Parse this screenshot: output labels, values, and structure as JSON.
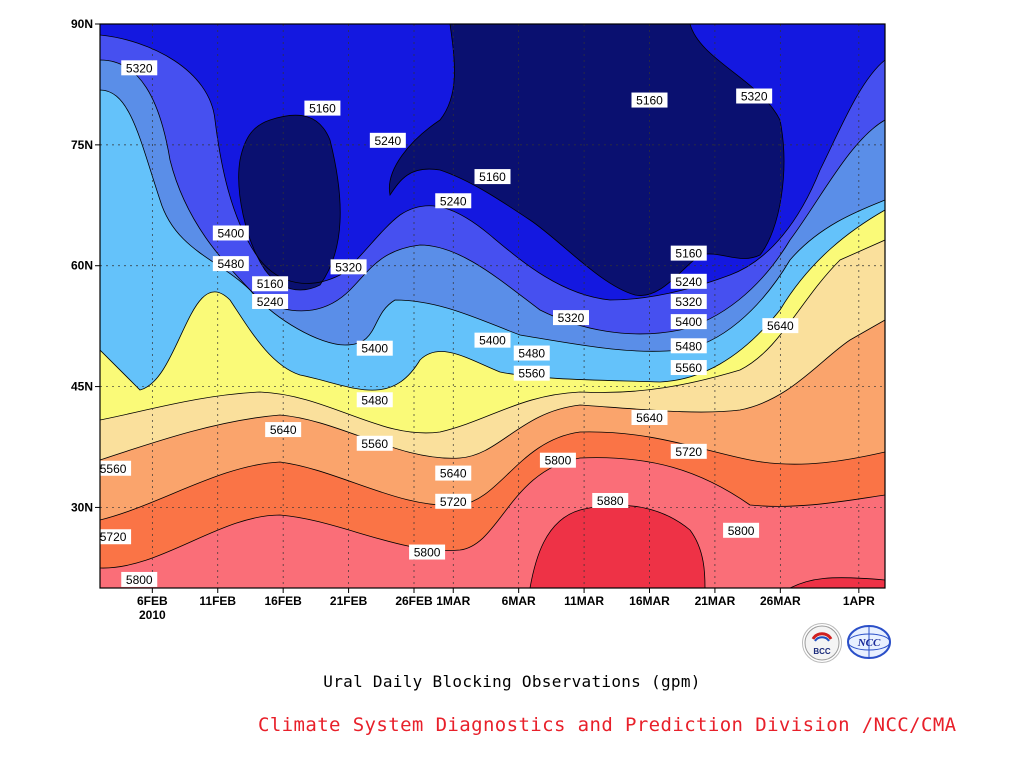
{
  "chart_data": {
    "type": "contour",
    "xaxis": {
      "ticks": [
        "6FEB",
        "11FEB",
        "16FEB",
        "21FEB",
        "26FEB",
        "1MAR",
        "6MAR",
        "11MAR",
        "16MAR",
        "21MAR",
        "26MAR",
        "1APR"
      ],
      "year_label": "2010",
      "range": [
        "2010-02-02",
        "2010-04-03"
      ]
    },
    "yaxis": {
      "ticks": [
        "30N",
        "45N",
        "60N",
        "75N",
        "90N"
      ],
      "range_deg": [
        20,
        90
      ]
    },
    "grid": "dotted",
    "levels": [
      5160,
      5240,
      5320,
      5400,
      5480,
      5560,
      5640,
      5720,
      5800,
      5880
    ],
    "level_colors": [
      "#0a1070",
      "#1418e0",
      "#4650f0",
      "#5a8ee8",
      "#64c2fa",
      "#fafa78",
      "#fae09c",
      "#faa46c",
      "#fa7446",
      "#fa6e78",
      "#ee3246"
    ],
    "contour_labels": [
      {
        "text": "5320",
        "date": "2010-02-05",
        "lat": 84.5
      },
      {
        "text": "5160",
        "date": "2010-02-19",
        "lat": 79.5
      },
      {
        "text": "5240",
        "date": "2010-02-24",
        "lat": 75.5
      },
      {
        "text": "5160",
        "date": "2010-03-16",
        "lat": 80.5
      },
      {
        "text": "5320",
        "date": "2010-03-24",
        "lat": 81.0
      },
      {
        "text": "5160",
        "date": "2010-03-04",
        "lat": 71.0
      },
      {
        "text": "5240",
        "date": "2010-03-01",
        "lat": 68.0
      },
      {
        "text": "5400",
        "date": "2010-02-12",
        "lat": 64.0
      },
      {
        "text": "5480",
        "date": "2010-02-12",
        "lat": 60.2
      },
      {
        "text": "5320",
        "date": "2010-02-21",
        "lat": 59.8
      },
      {
        "text": "5160",
        "date": "2010-03-19",
        "lat": 61.5
      },
      {
        "text": "5240",
        "date": "2010-03-19",
        "lat": 58.0
      },
      {
        "text": "5320",
        "date": "2010-03-19",
        "lat": 55.5
      },
      {
        "text": "5400",
        "date": "2010-03-19",
        "lat": 53.0
      },
      {
        "text": "5480",
        "date": "2010-03-19",
        "lat": 50.0
      },
      {
        "text": "5560",
        "date": "2010-03-19",
        "lat": 47.3
      },
      {
        "text": "5640",
        "date": "2010-03-26",
        "lat": 52.5
      },
      {
        "text": "5160",
        "date": "2010-02-15",
        "lat": 57.7
      },
      {
        "text": "5240",
        "date": "2010-02-15",
        "lat": 55.5
      },
      {
        "text": "5320",
        "date": "2010-03-10",
        "lat": 53.5
      },
      {
        "text": "5400",
        "date": "2010-03-04",
        "lat": 50.7
      },
      {
        "text": "5480",
        "date": "2010-03-07",
        "lat": 49.1
      },
      {
        "text": "5560",
        "date": "2010-03-07",
        "lat": 46.6
      },
      {
        "text": "5400",
        "date": "2010-02-23",
        "lat": 49.7
      },
      {
        "text": "5480",
        "date": "2010-02-23",
        "lat": 43.3
      },
      {
        "text": "5560",
        "date": "2010-02-23",
        "lat": 37.9
      },
      {
        "text": "5640",
        "date": "2010-02-16",
        "lat": 39.6
      },
      {
        "text": "5640",
        "date": "2010-03-16",
        "lat": 41.1
      },
      {
        "text": "5560",
        "date": "2010-02-03",
        "lat": 34.8
      },
      {
        "text": "5640",
        "date": "2010-02-29",
        "lat": 34.2
      },
      {
        "text": "5720",
        "date": "2010-03-19",
        "lat": 36.9
      },
      {
        "text": "5800",
        "date": "2010-03-09",
        "lat": 35.8
      },
      {
        "text": "5720",
        "date": "2010-02-29",
        "lat": 30.7
      },
      {
        "text": "5720",
        "date": "2010-02-03",
        "lat": 26.3
      },
      {
        "text": "5880",
        "date": "2010-03-13",
        "lat": 30.8
      },
      {
        "text": "5800",
        "date": "2010-02-27",
        "lat": 24.4
      },
      {
        "text": "5800",
        "date": "2010-03-23",
        "lat": 27.1
      },
      {
        "text": "5800",
        "date": "2010-02-05",
        "lat": 21.0
      }
    ],
    "title": "Ural Daily Blocking Observations (gpm)",
    "credit": "Climate System Diagnostics and Prediction Division /NCC/CMA"
  },
  "logos": {
    "bcc": "BCC",
    "ncc": "NCC"
  }
}
